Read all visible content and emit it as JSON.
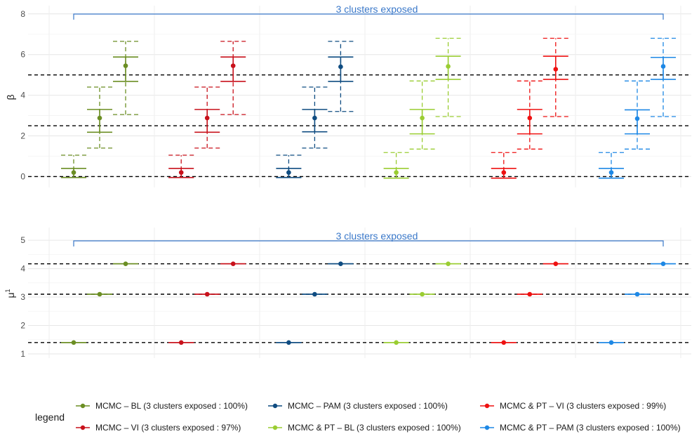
{
  "chart_data": [
    {
      "type": "errorbar",
      "ylabel": "β",
      "ylim": [
        -0.4,
        8.2
      ],
      "yticks": [
        0,
        2,
        4,
        6,
        8
      ],
      "reference_lines": [
        0,
        2.5,
        5
      ],
      "annotation": {
        "text": "3 clusters exposed",
        "color": "#3a78c9"
      },
      "groups": [
        {
          "series": "MCMC – BL",
          "color": "#6b8e23",
          "points": [
            {
              "mean": 0.2,
              "inner": [
                -0.05,
                0.4
              ],
              "outer": [
                -0.05,
                1.05
              ]
            },
            {
              "mean": 2.88,
              "inner": [
                2.18,
                3.3
              ],
              "outer": [
                1.4,
                4.4
              ]
            },
            {
              "mean": 5.45,
              "inner": [
                4.68,
                5.88
              ],
              "outer": [
                3.05,
                6.65
              ]
            }
          ]
        },
        {
          "series": "MCMC – VI",
          "color": "#c8111b",
          "points": [
            {
              "mean": 0.2,
              "inner": [
                -0.05,
                0.4
              ],
              "outer": [
                -0.05,
                1.05
              ]
            },
            {
              "mean": 2.88,
              "inner": [
                2.18,
                3.3
              ],
              "outer": [
                1.4,
                4.4
              ]
            },
            {
              "mean": 5.45,
              "inner": [
                4.68,
                5.88
              ],
              "outer": [
                3.05,
                6.65
              ]
            }
          ]
        },
        {
          "series": "MCMC – PAM",
          "color": "#0f4c81",
          "points": [
            {
              "mean": 0.2,
              "inner": [
                -0.05,
                0.4
              ],
              "outer": [
                -0.05,
                1.05
              ]
            },
            {
              "mean": 2.88,
              "inner": [
                2.2,
                3.3
              ],
              "outer": [
                1.4,
                4.4
              ]
            },
            {
              "mean": 5.4,
              "inner": [
                4.68,
                5.88
              ],
              "outer": [
                3.2,
                6.65
              ]
            }
          ]
        },
        {
          "series": "MCMC & PT – BL",
          "color": "#9acd32",
          "points": [
            {
              "mean": 0.2,
              "inner": [
                -0.08,
                0.4
              ],
              "outer": [
                -0.08,
                1.18
              ]
            },
            {
              "mean": 2.88,
              "inner": [
                2.1,
                3.3
              ],
              "outer": [
                1.35,
                4.7
              ]
            },
            {
              "mean": 5.42,
              "inner": [
                4.78,
                5.92
              ],
              "outer": [
                2.95,
                6.8
              ]
            }
          ]
        },
        {
          "series": "MCMC & PT – VI",
          "color": "#ee1111",
          "points": [
            {
              "mean": 0.2,
              "inner": [
                -0.08,
                0.4
              ],
              "outer": [
                -0.08,
                1.18
              ]
            },
            {
              "mean": 2.88,
              "inner": [
                2.1,
                3.3
              ],
              "outer": [
                1.35,
                4.7
              ]
            },
            {
              "mean": 5.28,
              "inner": [
                4.78,
                5.92
              ],
              "outer": [
                2.95,
                6.8
              ]
            }
          ]
        },
        {
          "series": "MCMC & PT – PAM",
          "color": "#1e88e5",
          "points": [
            {
              "mean": 0.2,
              "inner": [
                -0.08,
                0.4
              ],
              "outer": [
                -0.08,
                1.18
              ]
            },
            {
              "mean": 2.85,
              "inner": [
                2.1,
                3.28
              ],
              "outer": [
                1.35,
                4.7
              ]
            },
            {
              "mean": 5.42,
              "inner": [
                4.78,
                5.86
              ],
              "outer": [
                2.95,
                6.8
              ]
            }
          ]
        }
      ]
    },
    {
      "type": "errorbar",
      "ylabel": "μ",
      "ylabel_superscript": "1",
      "ylim": [
        0.95,
        5.3
      ],
      "yticks": [
        1,
        2,
        3,
        4,
        5
      ],
      "reference_lines": [
        1.4,
        3.1,
        4.17
      ],
      "annotation": {
        "text": "3 clusters exposed",
        "color": "#3a78c9"
      },
      "groups": [
        {
          "series": "MCMC – BL",
          "color": "#6b8e23",
          "points": [
            {
              "mean": 1.4,
              "inner": [
                1.4,
                1.4
              ],
              "outer": [
                1.4,
                1.4
              ]
            },
            {
              "mean": 3.1,
              "inner": [
                3.1,
                3.1
              ],
              "outer": [
                3.1,
                3.1
              ]
            },
            {
              "mean": 4.17,
              "inner": [
                4.17,
                4.17
              ],
              "outer": [
                4.17,
                4.17
              ]
            }
          ]
        },
        {
          "series": "MCMC – VI",
          "color": "#c8111b",
          "points": [
            {
              "mean": 1.4,
              "inner": [
                1.4,
                1.4
              ],
              "outer": [
                1.4,
                1.4
              ]
            },
            {
              "mean": 3.1,
              "inner": [
                3.1,
                3.1
              ],
              "outer": [
                3.1,
                3.1
              ]
            },
            {
              "mean": 4.17,
              "inner": [
                4.17,
                4.17
              ],
              "outer": [
                4.17,
                4.17
              ]
            }
          ]
        },
        {
          "series": "MCMC – PAM",
          "color": "#0f4c81",
          "points": [
            {
              "mean": 1.4,
              "inner": [
                1.4,
                1.4
              ],
              "outer": [
                1.4,
                1.4
              ]
            },
            {
              "mean": 3.1,
              "inner": [
                3.1,
                3.1
              ],
              "outer": [
                3.1,
                3.1
              ]
            },
            {
              "mean": 4.17,
              "inner": [
                4.17,
                4.17
              ],
              "outer": [
                4.17,
                4.17
              ]
            }
          ]
        },
        {
          "series": "MCMC & PT – BL",
          "color": "#9acd32",
          "points": [
            {
              "mean": 1.4,
              "inner": [
                1.4,
                1.4
              ],
              "outer": [
                1.4,
                1.4
              ]
            },
            {
              "mean": 3.1,
              "inner": [
                3.1,
                3.1
              ],
              "outer": [
                3.1,
                3.1
              ]
            },
            {
              "mean": 4.17,
              "inner": [
                4.17,
                4.17
              ],
              "outer": [
                4.17,
                4.17
              ]
            }
          ]
        },
        {
          "series": "MCMC & PT – VI",
          "color": "#ee1111",
          "points": [
            {
              "mean": 1.4,
              "inner": [
                1.4,
                1.4
              ],
              "outer": [
                1.4,
                1.4
              ]
            },
            {
              "mean": 3.1,
              "inner": [
                3.1,
                3.1
              ],
              "outer": [
                3.1,
                3.1
              ]
            },
            {
              "mean": 4.17,
              "inner": [
                4.17,
                4.17
              ],
              "outer": [
                4.17,
                4.17
              ]
            }
          ]
        },
        {
          "series": "MCMC & PT – PAM",
          "color": "#1e88e5",
          "points": [
            {
              "mean": 1.4,
              "inner": [
                1.4,
                1.4
              ],
              "outer": [
                1.4,
                1.4
              ]
            },
            {
              "mean": 3.1,
              "inner": [
                3.1,
                3.1
              ],
              "outer": [
                3.1,
                3.1
              ]
            },
            {
              "mean": 4.17,
              "inner": [
                4.17,
                4.17
              ],
              "outer": [
                4.17,
                4.17
              ]
            }
          ]
        }
      ]
    }
  ],
  "legend": {
    "title": "legend",
    "position": "bottom",
    "entries": [
      {
        "label": "MCMC – BL (3 clusters exposed : 100%)",
        "color": "#6b8e23"
      },
      {
        "label": "MCMC – PAM (3 clusters exposed : 100%)",
        "color": "#0f4c81"
      },
      {
        "label": "MCMC & PT – VI (3 clusters exposed : 99%)",
        "color": "#ee1111"
      },
      {
        "label": "MCMC – VI (3 clusters exposed : 97%)",
        "color": "#c8111b"
      },
      {
        "label": "MCMC & PT – BL (3 clusters exposed : 100%)",
        "color": "#9acd32"
      },
      {
        "label": "MCMC & PT – PAM (3 clusters exposed : 100%)",
        "color": "#1e88e5"
      }
    ]
  }
}
